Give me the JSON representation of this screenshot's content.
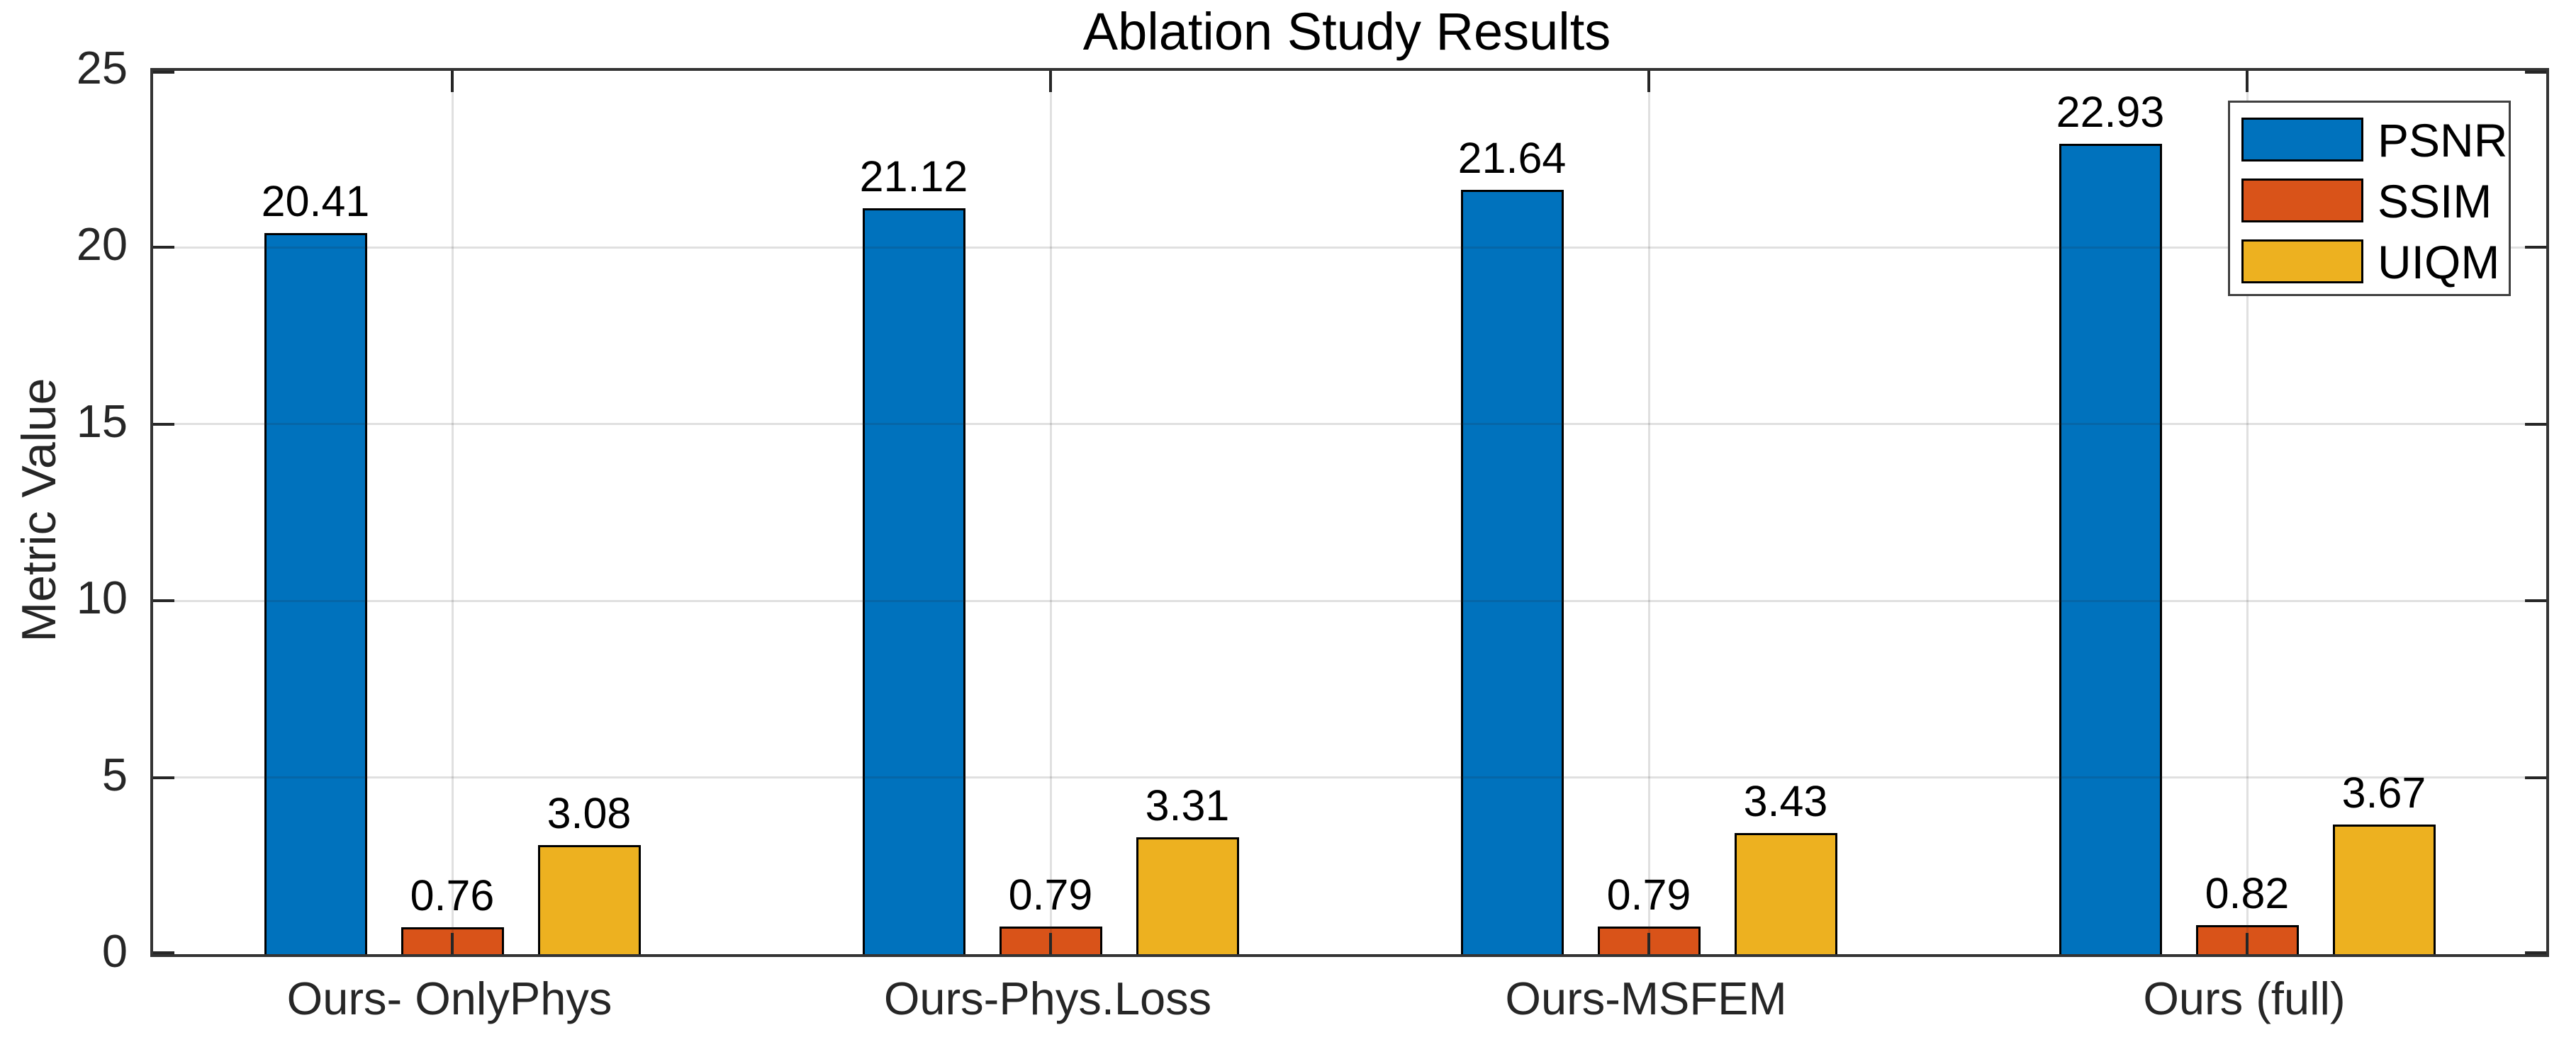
{
  "chart_data": {
    "type": "bar",
    "title": "Ablation Study Results",
    "xlabel": "",
    "ylabel": "Metric Value",
    "ylim": [
      0,
      25
    ],
    "yticks": [
      0,
      5,
      10,
      15,
      20,
      25
    ],
    "grid": true,
    "grid_layer": "top",
    "legend_position": "top-right",
    "bar_value_labels": true,
    "categories": [
      "Ours- OnlyPhys",
      "Ours-Phys.Loss",
      "Ours-MSFEM",
      "Ours (full)"
    ],
    "series": [
      {
        "name": "PSNR",
        "color": "#0072BD",
        "values": [
          20.41,
          21.12,
          21.64,
          22.93
        ]
      },
      {
        "name": "SSIM",
        "color": "#D95319",
        "values": [
          0.76,
          0.79,
          0.79,
          0.82
        ]
      },
      {
        "name": "UIQM",
        "color": "#EDB120",
        "values": [
          3.08,
          3.31,
          3.43,
          3.67
        ]
      }
    ],
    "colors": {
      "axis": "#333333",
      "tick": "#262626",
      "text": "#000000",
      "bar_edge": "#000000"
    }
  }
}
